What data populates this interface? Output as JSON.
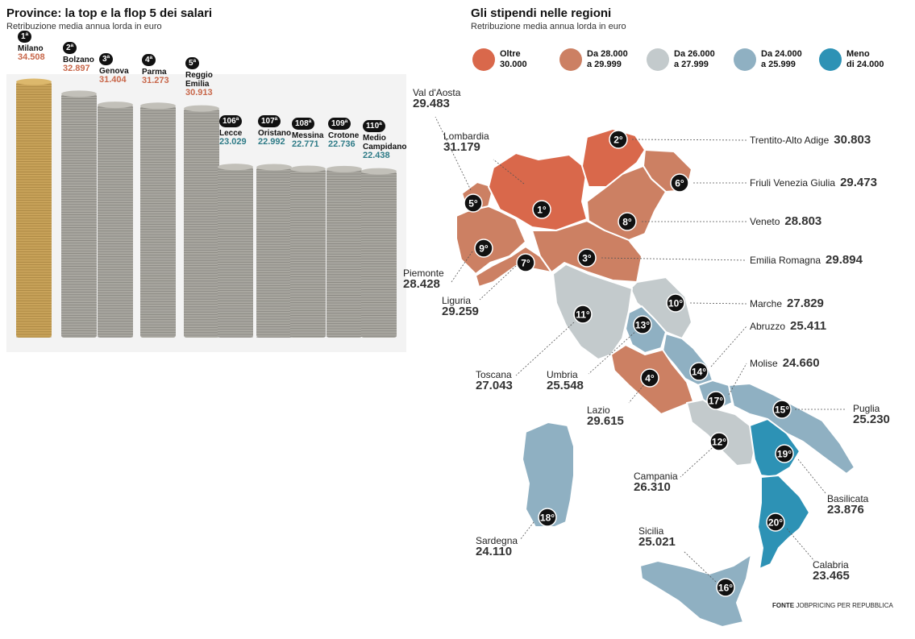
{
  "left": {
    "title": "Province: la top e la flop 5 dei salari",
    "subtitle": "Retribuzione media annua lorda in euro"
  },
  "right": {
    "title": "Gli stipendi nelle regioni",
    "subtitle": "Retribuzione media annua lorda in euro"
  },
  "legend": [
    {
      "line1": "Oltre",
      "line2": "30.000",
      "color": "#d9684b"
    },
    {
      "line1": "Da 28.000",
      "line2": "a 29.999",
      "color": "#cc8063"
    },
    {
      "line1": "Da 26.000",
      "line2": "a 27.999",
      "color": "#c3cacc"
    },
    {
      "line1": "Da 24.000",
      "line2": "a 25.999",
      "color": "#8fb0c2"
    },
    {
      "line1": "Meno",
      "line2": "di 24.000",
      "color": "#2d92b5"
    }
  ],
  "provinces": [
    {
      "rank": "1ª",
      "name": "Milano",
      "value": "34.508",
      "group": "top"
    },
    {
      "rank": "2ª",
      "name": "Bolzano",
      "value": "32.897",
      "group": "top"
    },
    {
      "rank": "3ª",
      "name": "Genova",
      "value": "31.404",
      "group": "top"
    },
    {
      "rank": "4ª",
      "name": "Parma",
      "value": "31.273",
      "group": "top"
    },
    {
      "rank": "5ª",
      "name": "Reggio Emilia",
      "value": "30.913",
      "group": "top"
    },
    {
      "rank": "106ª",
      "name": "Lecce",
      "value": "23.029",
      "group": "flop"
    },
    {
      "rank": "107ª",
      "name": "Oristano",
      "value": "22.992",
      "group": "flop"
    },
    {
      "rank": "108ª",
      "name": "Messina",
      "value": "22.771",
      "group": "flop"
    },
    {
      "rank": "109ª",
      "name": "Crotone",
      "value": "22.736",
      "group": "flop"
    },
    {
      "rank": "110ª",
      "name": "Medio Campidano",
      "value": "22.438",
      "group": "flop"
    }
  ],
  "regions": [
    {
      "name": "Val d'Aosta",
      "value": "29.483",
      "rank": "5°",
      "band": 1
    },
    {
      "name": "Lombardia",
      "value": "31.179",
      "rank": "1°",
      "band": 0
    },
    {
      "name": "Trentito-Alto Adige",
      "value": "30.803",
      "rank": "2°",
      "band": 0
    },
    {
      "name": "Friuli Venezia Giulia",
      "value": "29.473",
      "rank": "6°",
      "band": 1
    },
    {
      "name": "Veneto",
      "value": "28.803",
      "rank": "8°",
      "band": 1
    },
    {
      "name": "Emilia Romagna",
      "value": "29.894",
      "rank": "3°",
      "band": 1
    },
    {
      "name": "Piemonte",
      "value": "28.428",
      "rank": "9°",
      "band": 1
    },
    {
      "name": "Liguria",
      "value": "29.259",
      "rank": "7°",
      "band": 1
    },
    {
      "name": "Marche",
      "value": "27.829",
      "rank": "10°",
      "band": 2
    },
    {
      "name": "Abruzzo",
      "value": "25.411",
      "rank": "14°",
      "band": 3
    },
    {
      "name": "Molise",
      "value": "24.660",
      "rank": "17°",
      "band": 3
    },
    {
      "name": "Toscana",
      "value": "27.043",
      "rank": "11°",
      "band": 2
    },
    {
      "name": "Umbria",
      "value": "25.548",
      "rank": "13°",
      "band": 3
    },
    {
      "name": "Lazio",
      "value": "29.615",
      "rank": "4°",
      "band": 1
    },
    {
      "name": "Puglia",
      "value": "25.230",
      "rank": "15°",
      "band": 3
    },
    {
      "name": "Campania",
      "value": "26.310",
      "rank": "12°",
      "band": 2
    },
    {
      "name": "Basilicata",
      "value": "23.876",
      "rank": "19°",
      "band": 4
    },
    {
      "name": "Sardegna",
      "value": "24.110",
      "rank": "18°",
      "band": 3
    },
    {
      "name": "Sicilia",
      "value": "25.021",
      "rank": "16°",
      "band": 3
    },
    {
      "name": "Calabria",
      "value": "23.465",
      "rank": "20°",
      "band": 4
    }
  ],
  "source": {
    "label": "FONTE",
    "text": "JOBPRICING PER REPUBBLICA"
  },
  "chart_data": [
    {
      "type": "bar",
      "title": "Province: la top e la flop 5 dei salari",
      "subtitle": "Retribuzione media annua lorda in euro",
      "categories": [
        "Milano",
        "Bolzano",
        "Genova",
        "Parma",
        "Reggio Emilia",
        "Lecce",
        "Oristano",
        "Messina",
        "Crotone",
        "Medio Campidano"
      ],
      "values": [
        34508,
        32897,
        31404,
        31273,
        30913,
        23029,
        22992,
        22771,
        22736,
        22438
      ]
    },
    {
      "type": "table",
      "title": "Gli stipendi nelle regioni",
      "subtitle": "Retribuzione media annua lorda in euro",
      "categories": [
        "Val d'Aosta",
        "Lombardia",
        "Trentito-Alto Adige",
        "Friuli Venezia Giulia",
        "Veneto",
        "Emilia Romagna",
        "Piemonte",
        "Liguria",
        "Marche",
        "Abruzzo",
        "Molise",
        "Toscana",
        "Umbria",
        "Lazio",
        "Puglia",
        "Campania",
        "Basilicata",
        "Sardegna",
        "Sicilia",
        "Calabria"
      ],
      "values": [
        29483,
        31179,
        30803,
        29473,
        28803,
        29894,
        28428,
        29259,
        27829,
        25411,
        24660,
        27043,
        25548,
        29615,
        25230,
        26310,
        23876,
        24110,
        25021,
        23465
      ]
    }
  ]
}
